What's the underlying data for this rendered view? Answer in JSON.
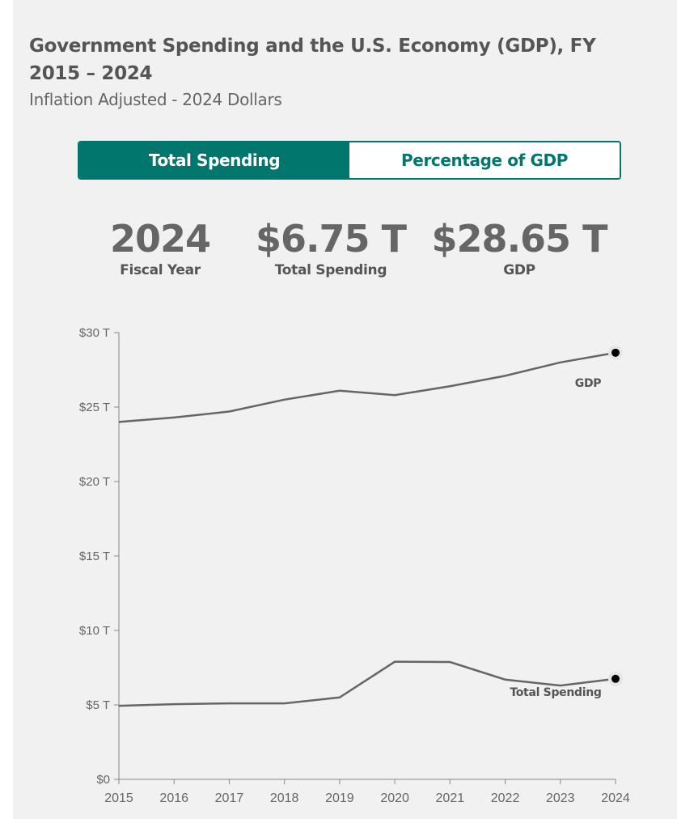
{
  "title": "Government Spending and the U.S. Economy (GDP), FY 2015 – 2024",
  "subtitle": "Inflation Adjusted - 2024 Dollars",
  "toggle": {
    "options": [
      "Total Spending",
      "Percentage of GDP"
    ],
    "selected": "Total Spending"
  },
  "stats": [
    {
      "value": "2024",
      "label": "Fiscal Year"
    },
    {
      "value": "$6.75 T",
      "label": "Total Spending"
    },
    {
      "value": "$28.65 T",
      "label": "GDP"
    }
  ],
  "colors": {
    "accent": "#00766c",
    "line": "#666666",
    "marker": "#000000"
  },
  "chart_data": {
    "type": "line",
    "x": [
      2015,
      2016,
      2017,
      2018,
      2019,
      2020,
      2021,
      2022,
      2023,
      2024
    ],
    "series": [
      {
        "name": "GDP",
        "values": [
          24.0,
          24.3,
          24.7,
          25.5,
          26.1,
          25.8,
          26.4,
          27.1,
          28.0,
          28.65
        ]
      },
      {
        "name": "Total Spending",
        "values": [
          4.94,
          5.05,
          5.1,
          5.1,
          5.5,
          7.9,
          7.88,
          6.7,
          6.3,
          6.75
        ]
      }
    ],
    "ylim": [
      0,
      30
    ],
    "yticks": [
      0,
      5,
      10,
      15,
      20,
      25,
      30
    ],
    "ytick_labels": [
      "$0",
      "$5 T",
      "$10 T",
      "$15 T",
      "$20 T",
      "$25 T",
      "$30 T"
    ],
    "grid": false,
    "legend": "inline labels at line ends"
  }
}
